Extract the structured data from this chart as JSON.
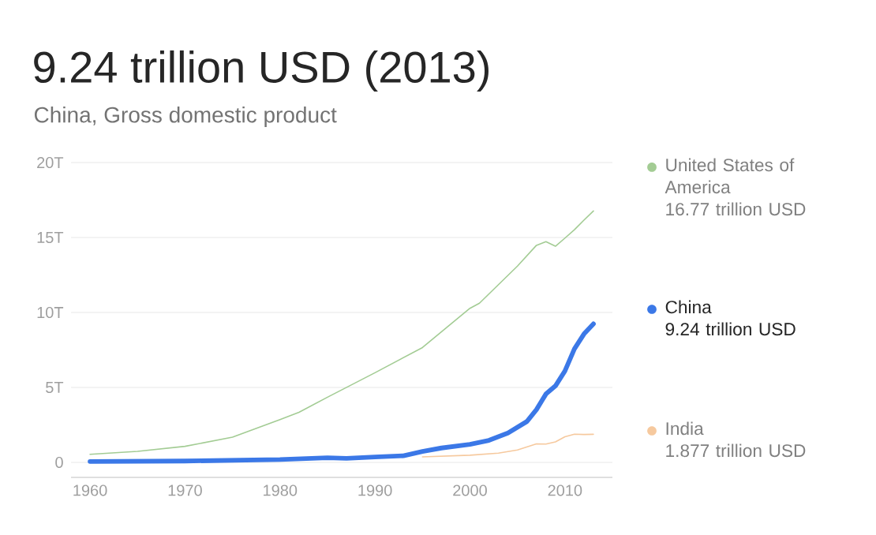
{
  "chart_data": {
    "type": "line",
    "title": "9.24 trillion USD (2013)",
    "subtitle": "China, Gross domestic product",
    "xlim": [
      1958,
      2015
    ],
    "xticks": [
      1960,
      1970,
      1980,
      1990,
      2000,
      2010
    ],
    "ylim": [
      -1,
      20
    ],
    "yticks": [
      {
        "value": 0,
        "label": "0"
      },
      {
        "value": 5,
        "label": "5T"
      },
      {
        "value": 10,
        "label": "10T"
      },
      {
        "value": 15,
        "label": "15T"
      },
      {
        "value": 20,
        "label": "20T"
      }
    ],
    "grid": "y",
    "legend": "right",
    "line_style": "solid",
    "annotations": [
      "16.77 trillion USD",
      "1.877 trillion USD",
      "9.24 trillion USD"
    ],
    "series": [
      {
        "name": "United States of America",
        "color": "#a3cc94",
        "x": [
          1960,
          1965,
          1970,
          1975,
          1980,
          1982,
          1985,
          1990,
          1995,
          2000,
          2001,
          2005,
          2007,
          2008,
          2009,
          2010,
          2011,
          2012,
          2013
        ],
        "values": [
          0.54,
          0.74,
          1.07,
          1.68,
          2.86,
          3.34,
          4.35,
          5.98,
          7.66,
          10.28,
          10.62,
          13.09,
          14.48,
          14.72,
          14.42,
          14.96,
          15.52,
          16.16,
          16.77
        ]
      },
      {
        "name": "India",
        "color": "#f6c99e",
        "x": [
          1995,
          2000,
          2003,
          2005,
          2007,
          2008,
          2009,
          2010,
          2011,
          2012,
          2013
        ],
        "values": [
          0.37,
          0.48,
          0.62,
          0.83,
          1.24,
          1.22,
          1.37,
          1.71,
          1.88,
          1.86,
          1.877
        ]
      },
      {
        "name": "China",
        "color": "#3b78e7",
        "x": [
          1960,
          1970,
          1980,
          1985,
          1987,
          1990,
          1993,
          1995,
          1997,
          2000,
          2002,
          2004,
          2006,
          2007,
          2008,
          2009,
          2010,
          2011,
          2012,
          2013
        ],
        "values": [
          0.06,
          0.09,
          0.19,
          0.31,
          0.27,
          0.36,
          0.44,
          0.73,
          0.96,
          1.2,
          1.47,
          1.96,
          2.73,
          3.52,
          4.56,
          5.1,
          6.1,
          7.57,
          8.56,
          9.24
        ]
      }
    ]
  }
}
